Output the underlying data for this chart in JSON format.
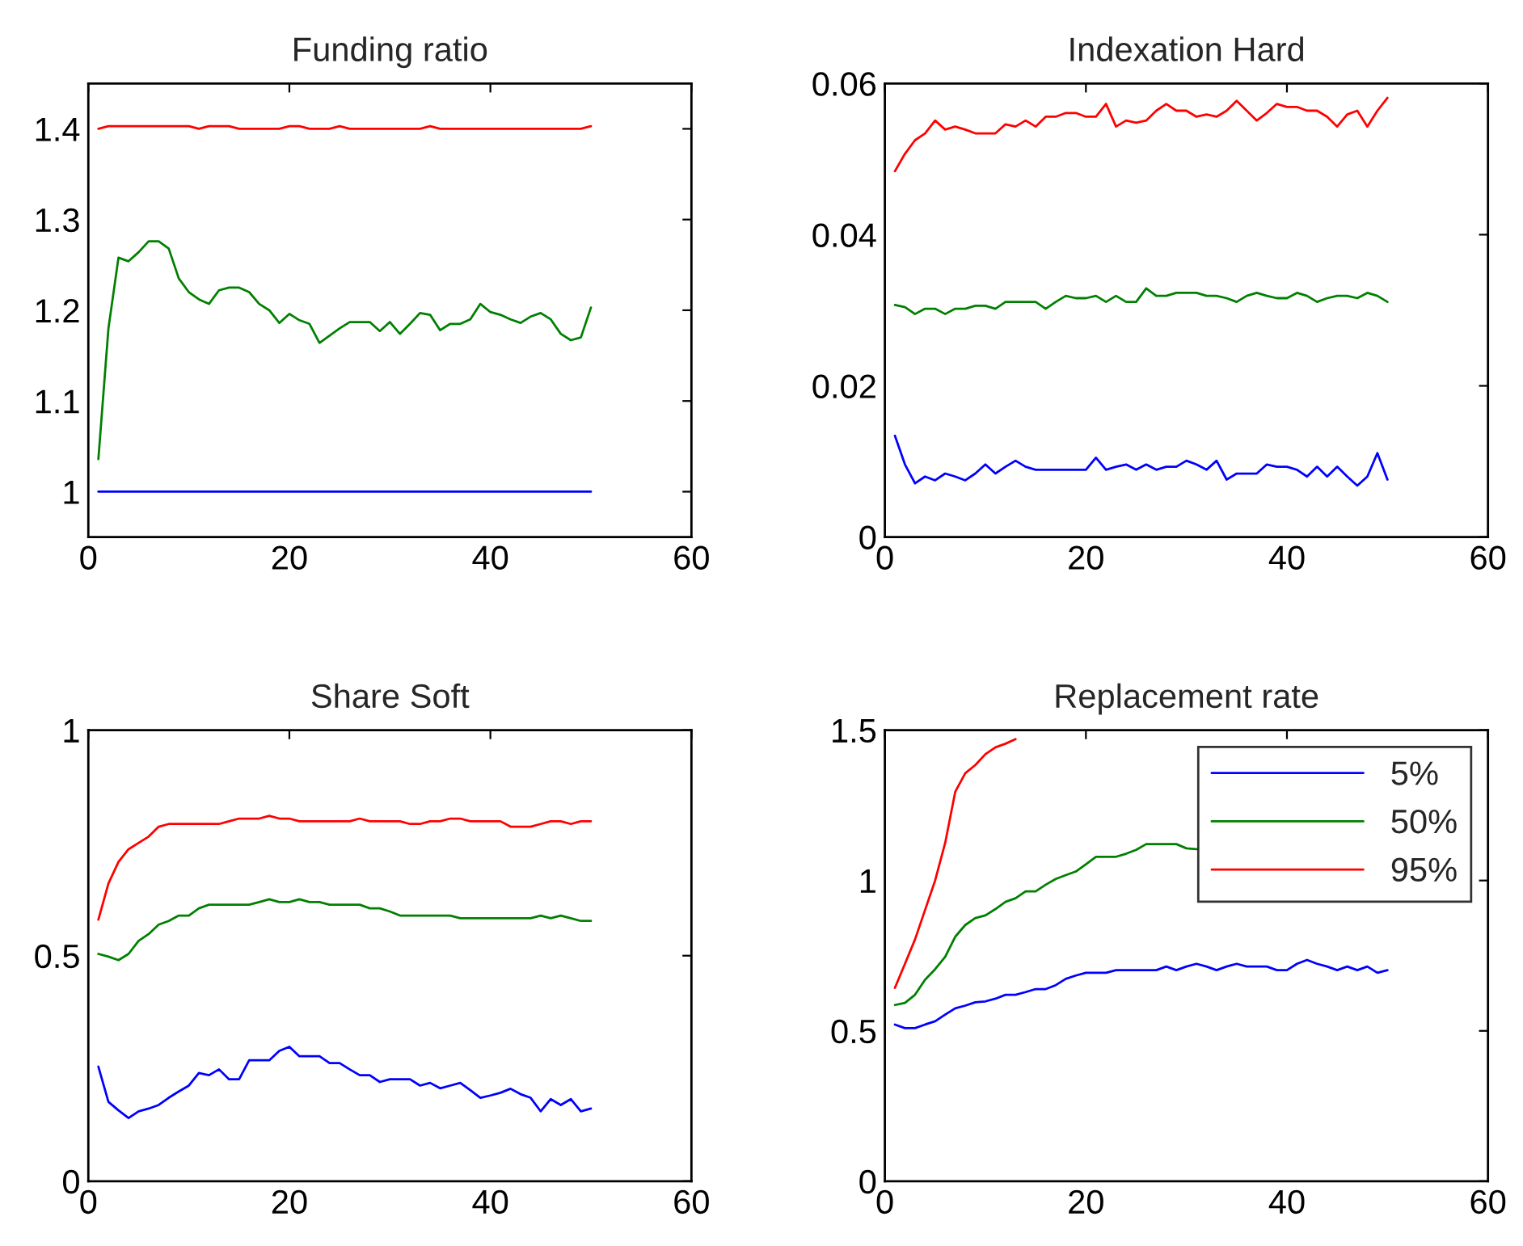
{
  "chart_data": [
    {
      "type": "line",
      "title": "Funding ratio",
      "x": [
        1,
        2,
        3,
        4,
        5,
        6,
        7,
        8,
        9,
        10,
        11,
        12,
        13,
        14,
        15,
        16,
        17,
        18,
        19,
        20,
        21,
        22,
        23,
        24,
        25,
        26,
        27,
        28,
        29,
        30,
        31,
        32,
        33,
        34,
        35,
        36,
        37,
        38,
        39,
        40,
        41,
        42,
        43,
        44,
        45,
        46,
        47,
        48,
        49,
        50
      ],
      "xlim": [
        0,
        60
      ],
      "xticks": [
        0,
        20,
        40,
        60
      ],
      "ylim": [
        0.95,
        1.45
      ],
      "yticks": [
        1,
        1.1,
        1.2,
        1.3,
        1.4
      ],
      "grid": false,
      "legend": false,
      "series": [
        {
          "color": "#0000ff",
          "values": [
            1,
            1,
            1,
            1,
            1,
            1,
            1,
            1,
            1,
            1,
            1,
            1,
            1,
            1,
            1,
            1,
            1,
            1,
            1,
            1,
            1,
            1,
            1,
            1,
            1,
            1,
            1,
            1,
            1,
            1,
            1,
            1,
            1,
            1,
            1,
            1,
            1,
            1,
            1,
            1,
            1,
            1,
            1,
            1,
            1,
            1,
            1,
            1,
            1,
            1
          ]
        },
        {
          "color": "#008000",
          "values": [
            1.036,
            1.18,
            1.258,
            1.254,
            1.264,
            1.276,
            1.276,
            1.268,
            1.235,
            1.22,
            1.212,
            1.207,
            1.222,
            1.225,
            1.225,
            1.22,
            1.207,
            1.2,
            1.186,
            1.196,
            1.189,
            1.185,
            1.164,
            1.172,
            1.18,
            1.187,
            1.187,
            1.187,
            1.177,
            1.187,
            1.174,
            1.185,
            1.197,
            1.195,
            1.178,
            1.185,
            1.185,
            1.19,
            1.207,
            1.198,
            1.195,
            1.19,
            1.186,
            1.193,
            1.197,
            1.19,
            1.174,
            1.167,
            1.17,
            1.203
          ]
        },
        {
          "color": "#ff0000",
          "values": [
            1.4,
            1.403,
            1.403,
            1.403,
            1.403,
            1.403,
            1.403,
            1.403,
            1.403,
            1.403,
            1.4,
            1.403,
            1.403,
            1.403,
            1.4,
            1.4,
            1.4,
            1.4,
            1.4,
            1.403,
            1.403,
            1.4,
            1.4,
            1.4,
            1.403,
            1.4,
            1.4,
            1.4,
            1.4,
            1.4,
            1.4,
            1.4,
            1.4,
            1.403,
            1.4,
            1.4,
            1.4,
            1.4,
            1.4,
            1.4,
            1.4,
            1.4,
            1.4,
            1.4,
            1.4,
            1.4,
            1.4,
            1.4,
            1.4,
            1.403
          ]
        }
      ]
    },
    {
      "type": "line",
      "title": "Indexation Hard",
      "x": [
        1,
        2,
        3,
        4,
        5,
        6,
        7,
        8,
        9,
        10,
        11,
        12,
        13,
        14,
        15,
        16,
        17,
        18,
        19,
        20,
        21,
        22,
        23,
        24,
        25,
        26,
        27,
        28,
        29,
        30,
        31,
        32,
        33,
        34,
        35,
        36,
        37,
        38,
        39,
        40,
        41,
        42,
        43,
        44,
        45,
        46,
        47,
        48,
        49,
        50
      ],
      "xlim": [
        0,
        60
      ],
      "xticks": [
        0,
        20,
        40,
        60
      ],
      "ylim": [
        0,
        0.06
      ],
      "yticks": [
        0,
        0.02,
        0.04,
        0.06
      ],
      "grid": false,
      "legend": false,
      "series": [
        {
          "color": "#0000ff",
          "values": [
            0.0134,
            0.0096,
            0.0071,
            0.008,
            0.0075,
            0.0084,
            0.008,
            0.0075,
            0.0084,
            0.0096,
            0.0084,
            0.0093,
            0.0101,
            0.0093,
            0.0089,
            0.0089,
            0.0089,
            0.0089,
            0.0089,
            0.0089,
            0.0105,
            0.0089,
            0.0093,
            0.0096,
            0.0089,
            0.0096,
            0.0089,
            0.0093,
            0.0093,
            0.0101,
            0.0096,
            0.0089,
            0.0101,
            0.0076,
            0.0084,
            0.0084,
            0.0084,
            0.0096,
            0.0093,
            0.0093,
            0.0089,
            0.008,
            0.0093,
            0.008,
            0.0093,
            0.008,
            0.0068,
            0.008,
            0.0111,
            0.0076
          ]
        },
        {
          "color": "#008000",
          "values": [
            0.0307,
            0.0304,
            0.0295,
            0.0302,
            0.0302,
            0.0295,
            0.0302,
            0.0302,
            0.0306,
            0.0306,
            0.0302,
            0.0311,
            0.0311,
            0.0311,
            0.0311,
            0.0302,
            0.0311,
            0.0319,
            0.0316,
            0.0316,
            0.0319,
            0.0311,
            0.0319,
            0.0311,
            0.0311,
            0.0329,
            0.0319,
            0.0319,
            0.0323,
            0.0323,
            0.0323,
            0.0319,
            0.0319,
            0.0316,
            0.0311,
            0.0319,
            0.0323,
            0.0319,
            0.0316,
            0.0316,
            0.0323,
            0.0319,
            0.0311,
            0.0316,
            0.0319,
            0.0319,
            0.0316,
            0.0323,
            0.0319,
            0.0311
          ]
        },
        {
          "color": "#ff0000",
          "values": [
            0.0484,
            0.0507,
            0.0525,
            0.0534,
            0.0551,
            0.0539,
            0.0543,
            0.0539,
            0.0534,
            0.0534,
            0.0534,
            0.0546,
            0.0543,
            0.0551,
            0.0543,
            0.0556,
            0.0556,
            0.0561,
            0.0561,
            0.0556,
            0.0556,
            0.0573,
            0.0543,
            0.0551,
            0.0548,
            0.0551,
            0.0564,
            0.0573,
            0.0564,
            0.0564,
            0.0556,
            0.0559,
            0.0556,
            0.0564,
            0.0577,
            0.0564,
            0.0551,
            0.0561,
            0.0573,
            0.0569,
            0.0569,
            0.0564,
            0.0564,
            0.0556,
            0.0543,
            0.0559,
            0.0564,
            0.0543,
            0.0564,
            0.0581
          ]
        }
      ]
    },
    {
      "type": "line",
      "title": "Share Soft",
      "x": [
        1,
        2,
        3,
        4,
        5,
        6,
        7,
        8,
        9,
        10,
        11,
        12,
        13,
        14,
        15,
        16,
        17,
        18,
        19,
        20,
        21,
        22,
        23,
        24,
        25,
        26,
        27,
        28,
        29,
        30,
        31,
        32,
        33,
        34,
        35,
        36,
        37,
        38,
        39,
        40,
        41,
        42,
        43,
        44,
        45,
        46,
        47,
        48,
        49,
        50
      ],
      "xlim": [
        0,
        60
      ],
      "xticks": [
        0,
        20,
        40,
        60
      ],
      "ylim": [
        0,
        1
      ],
      "yticks": [
        0,
        0.5,
        1
      ],
      "grid": false,
      "legend": false,
      "series": [
        {
          "color": "#0000ff",
          "values": [
            0.254,
            0.176,
            0.157,
            0.14,
            0.155,
            0.161,
            0.169,
            0.185,
            0.199,
            0.212,
            0.24,
            0.235,
            0.248,
            0.226,
            0.226,
            0.268,
            0.268,
            0.268,
            0.289,
            0.298,
            0.277,
            0.277,
            0.277,
            0.262,
            0.262,
            0.248,
            0.235,
            0.235,
            0.22,
            0.226,
            0.226,
            0.226,
            0.212,
            0.218,
            0.206,
            0.212,
            0.218,
            0.202,
            0.185,
            0.19,
            0.196,
            0.205,
            0.193,
            0.185,
            0.155,
            0.182,
            0.169,
            0.182,
            0.155,
            0.161
          ]
        },
        {
          "color": "#008000",
          "values": [
            0.504,
            0.498,
            0.49,
            0.504,
            0.533,
            0.548,
            0.569,
            0.577,
            0.589,
            0.589,
            0.605,
            0.613,
            0.613,
            0.613,
            0.613,
            0.613,
            0.619,
            0.625,
            0.619,
            0.619,
            0.625,
            0.619,
            0.619,
            0.613,
            0.613,
            0.613,
            0.613,
            0.605,
            0.605,
            0.598,
            0.589,
            0.589,
            0.589,
            0.589,
            0.589,
            0.589,
            0.583,
            0.583,
            0.583,
            0.583,
            0.583,
            0.583,
            0.583,
            0.583,
            0.589,
            0.583,
            0.589,
            0.583,
            0.577,
            0.577
          ]
        },
        {
          "color": "#ff0000",
          "values": [
            0.58,
            0.66,
            0.708,
            0.736,
            0.75,
            0.764,
            0.786,
            0.792,
            0.792,
            0.792,
            0.792,
            0.792,
            0.792,
            0.798,
            0.804,
            0.804,
            0.804,
            0.81,
            0.804,
            0.804,
            0.798,
            0.798,
            0.798,
            0.798,
            0.798,
            0.798,
            0.804,
            0.798,
            0.798,
            0.798,
            0.798,
            0.792,
            0.792,
            0.798,
            0.798,
            0.804,
            0.804,
            0.798,
            0.798,
            0.798,
            0.798,
            0.786,
            0.786,
            0.786,
            0.792,
            0.798,
            0.798,
            0.792,
            0.798,
            0.798
          ]
        }
      ]
    },
    {
      "type": "line",
      "title": "Replacement rate",
      "x": [
        1,
        2,
        3,
        4,
        5,
        6,
        7,
        8,
        9,
        10,
        11,
        12,
        13,
        14,
        15,
        16,
        17,
        18,
        19,
        20,
        21,
        22,
        23,
        24,
        25,
        26,
        27,
        28,
        29,
        30,
        31,
        32,
        33,
        34,
        35,
        36,
        37,
        38,
        39,
        40,
        41,
        42,
        43,
        44,
        45,
        46,
        47,
        48,
        49,
        50
      ],
      "xlim": [
        0,
        60
      ],
      "xticks": [
        0,
        20,
        40,
        60
      ],
      "ylim": [
        0,
        1.5
      ],
      "yticks": [
        0,
        0.5,
        1,
        1.5
      ],
      "grid": false,
      "legend": "top right",
      "series": [
        {
          "name": "5%",
          "color": "#0000ff",
          "values": [
            0.521,
            0.509,
            0.509,
            0.521,
            0.532,
            0.554,
            0.575,
            0.584,
            0.595,
            0.598,
            0.607,
            0.62,
            0.62,
            0.629,
            0.639,
            0.639,
            0.652,
            0.673,
            0.684,
            0.693,
            0.693,
            0.693,
            0.702,
            0.702,
            0.702,
            0.702,
            0.702,
            0.714,
            0.702,
            0.714,
            0.723,
            0.714,
            0.702,
            0.714,
            0.723,
            0.714,
            0.714,
            0.714,
            0.702,
            0.702,
            0.723,
            0.736,
            0.723,
            0.714,
            0.702,
            0.714,
            0.702,
            0.714,
            0.693,
            0.702
          ]
        },
        {
          "name": "50%",
          "color": "#008000",
          "values": [
            0.586,
            0.593,
            0.62,
            0.67,
            0.705,
            0.746,
            0.813,
            0.852,
            0.875,
            0.884,
            0.905,
            0.929,
            0.941,
            0.964,
            0.964,
            0.986,
            1.005,
            1.018,
            1.03,
            1.054,
            1.079,
            1.079,
            1.079,
            1.089,
            1.102,
            1.121,
            1.121,
            1.121,
            1.121,
            1.107,
            1.104,
            null,
            null,
            null,
            null,
            null,
            null,
            null,
            null,
            null,
            null,
            null,
            null,
            null,
            null,
            null,
            null,
            null,
            null,
            null
          ]
        },
        {
          "name": "95%",
          "color": "#ff0000",
          "values": [
            0.643,
            0.723,
            0.804,
            0.902,
            1.0,
            1.125,
            1.295,
            1.357,
            1.384,
            1.42,
            1.443,
            1.455,
            1.47,
            null,
            null,
            null,
            null,
            null,
            null,
            null,
            null,
            null,
            null,
            null,
            null,
            null,
            null,
            null,
            null,
            null,
            null,
            null,
            null,
            null,
            null,
            null,
            null,
            null,
            null,
            null,
            null,
            null,
            null,
            null,
            null,
            null,
            null,
            null,
            null,
            null
          ]
        }
      ]
    }
  ]
}
